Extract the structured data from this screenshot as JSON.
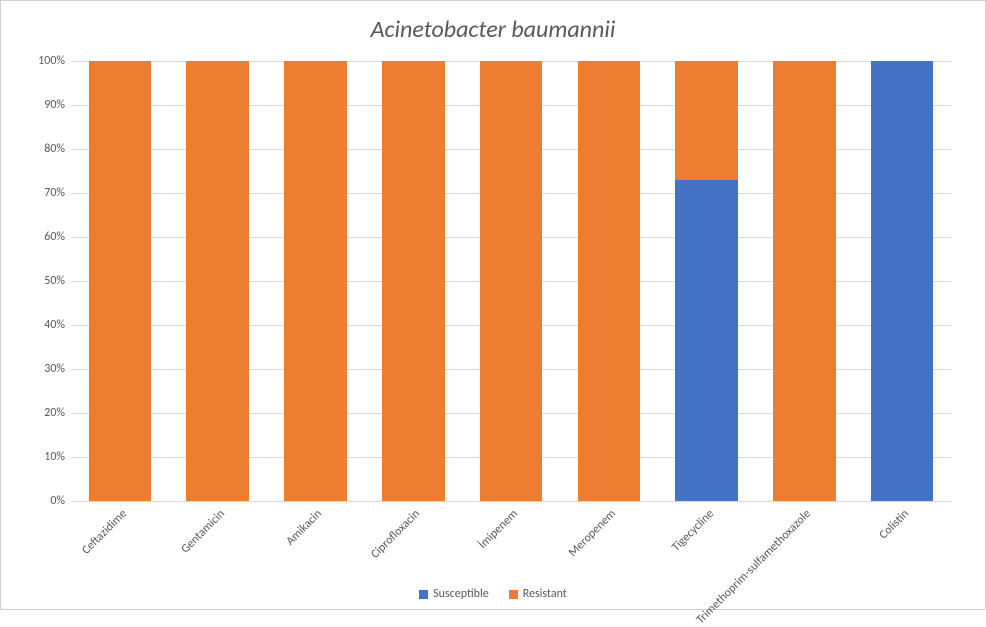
{
  "chart": {
    "type": "stacked-bar-100",
    "title": "Acinetobacter baumannii",
    "title_fontsize": 24,
    "title_fontstyle": "italic",
    "title_color": "#595959",
    "background_color": "#ffffff",
    "grid_color": "#d9d9d9",
    "axis_text_color": "#595959",
    "axis_fontsize": 12,
    "border_color": "#d0d0d0",
    "ylim": [
      0,
      100
    ],
    "ytick_step": 10,
    "y_ticks": [
      "0%",
      "10%",
      "20%",
      "30%",
      "40%",
      "50%",
      "60%",
      "70%",
      "80%",
      "90%",
      "100%"
    ],
    "x_label_rotation": -45,
    "bar_width_ratio": 0.64,
    "series": [
      {
        "key": "susceptible",
        "label": "Susceptible",
        "color": "#4472c4"
      },
      {
        "key": "resistant",
        "label": "Resistant",
        "color": "#ed7d31"
      }
    ],
    "categories": [
      {
        "label": "Ceftazidime",
        "susceptible": 0,
        "resistant": 100
      },
      {
        "label": "Gentamicin",
        "susceptible": 0,
        "resistant": 100
      },
      {
        "label": "Amikacin",
        "susceptible": 0,
        "resistant": 100
      },
      {
        "label": "Ciprofloxacin",
        "susceptible": 0,
        "resistant": 100
      },
      {
        "label": "İmipenem",
        "susceptible": 0,
        "resistant": 100
      },
      {
        "label": "Meropenem",
        "susceptible": 0,
        "resistant": 100
      },
      {
        "label": "Tigecycline",
        "susceptible": 73,
        "resistant": 27
      },
      {
        "label": "Trimethoprim-sulfamethoxazole",
        "susceptible": 0,
        "resistant": 100
      },
      {
        "label": "Colistin",
        "susceptible": 100,
        "resistant": 0
      }
    ],
    "legend_position": "bottom"
  }
}
